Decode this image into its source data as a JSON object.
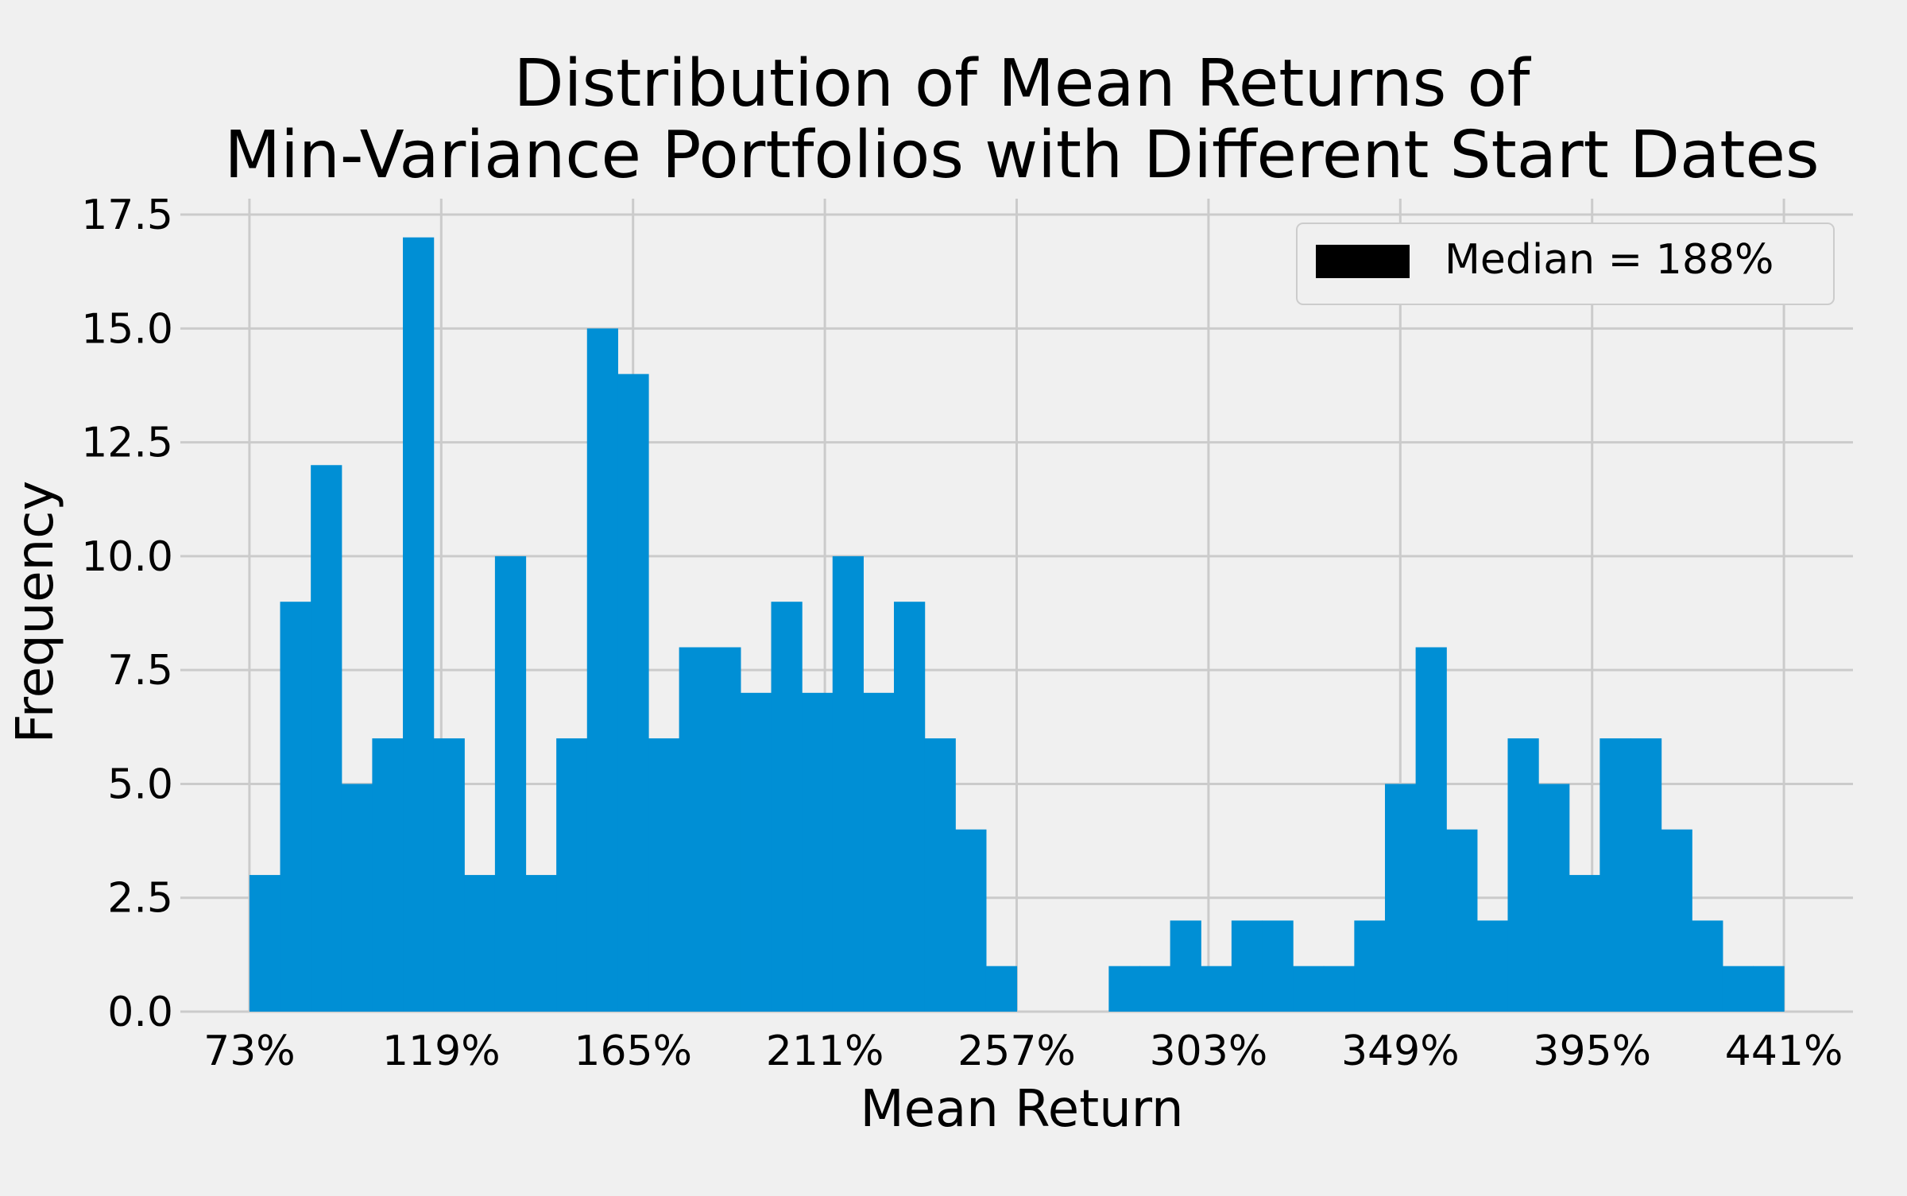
{
  "chart_data": {
    "type": "bar",
    "title": "Distribution of Mean Returns of\nMin-Variance Portfolios with Different Start Dates",
    "xlabel": "Mean Return",
    "ylabel": "Frequency",
    "x_unit": "%",
    "x_range": [
      73,
      441
    ],
    "bin_width": 7.36,
    "bin_edges_start": 73,
    "values": [
      3,
      9,
      12,
      5,
      6,
      17,
      6,
      3,
      10,
      3,
      6,
      15,
      14,
      6,
      8,
      8,
      7,
      9,
      7,
      10,
      7,
      9,
      6,
      4,
      1,
      0,
      0,
      0,
      1,
      1,
      2,
      1,
      2,
      2,
      1,
      1,
      2,
      5,
      8,
      4,
      2,
      6,
      5,
      3,
      6,
      6,
      4,
      2,
      1,
      1
    ],
    "xticks": [
      "73%",
      "119%",
      "165%",
      "211%",
      "257%",
      "303%",
      "349%",
      "395%",
      "441%"
    ],
    "xtick_values": [
      73,
      119,
      165,
      211,
      257,
      303,
      349,
      395,
      441
    ],
    "yticks": [
      "0.0",
      "2.5",
      "5.0",
      "7.5",
      "10.0",
      "12.5",
      "15.0",
      "17.5"
    ],
    "ytick_values": [
      0,
      2.5,
      5,
      7.5,
      10,
      12.5,
      15,
      17.5
    ],
    "ylim": [
      0,
      17.85
    ],
    "xlim": [
      56.44,
      457.56
    ],
    "legend": {
      "label": "Median = 188%",
      "position": "upper right",
      "swatch_color": "#000000"
    },
    "grid": true,
    "colors": {
      "bar": "#008fd5",
      "grid": "#cbcbcb",
      "background": "#f0f0f0"
    }
  }
}
